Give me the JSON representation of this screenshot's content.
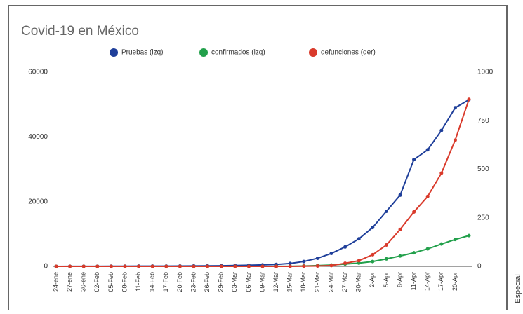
{
  "chart_data": {
    "type": "line",
    "title": "Covid-19 en México",
    "source": "Especial",
    "categories": [
      "24-ene",
      "27-ene",
      "30-ene",
      "02-Feb",
      "05-Feb",
      "08-Feb",
      "11-Feb",
      "14-Feb",
      "17-Feb",
      "20-Feb",
      "23-Feb",
      "26-Feb",
      "29-Feb",
      "03-Mar",
      "06-Mar",
      "09-Mar",
      "12-Mar",
      "15-Mar",
      "18-Mar",
      "21-Mar",
      "24-Mar",
      "27-Mar",
      "30-Mar",
      "2-Apr",
      "5-Apr",
      "8-Apr",
      "11-Apr",
      "14-Apr",
      "17-Apr",
      "20-Apr",
      null
    ],
    "series": [
      {
        "name": "Pruebas (izq)",
        "color": "#1f3f9a",
        "values": [
          10,
          20,
          30,
          40,
          50,
          60,
          70,
          80,
          90,
          110,
          130,
          160,
          200,
          270,
          350,
          450,
          600,
          900,
          1500,
          2500,
          4000,
          6000,
          8500,
          12000,
          17000,
          22000,
          33000,
          36000,
          42000,
          49000,
          51500
        ]
      },
      {
        "name": "confirmados (izq)",
        "color": "#22a04b",
        "values": [
          0,
          0,
          0,
          0,
          0,
          0,
          0,
          0,
          0,
          0,
          0,
          0,
          1,
          5,
          7,
          7,
          15,
          40,
          120,
          250,
          400,
          700,
          1000,
          1500,
          2300,
          3200,
          4200,
          5400,
          6900,
          8300,
          9500
        ]
      },
      {
        "name": "defunciones (der)",
        "color": "#d93a2b",
        "axis": "y2",
        "values": [
          0,
          0,
          0,
          0,
          0,
          0,
          0,
          0,
          0,
          0,
          0,
          0,
          0,
          0,
          0,
          0,
          0,
          0,
          1,
          2,
          4,
          16,
          29,
          60,
          110,
          190,
          280,
          360,
          480,
          650,
          860
        ]
      }
    ],
    "ylim": [
      0,
      60000
    ],
    "yticks": [
      0,
      20000,
      40000,
      60000
    ],
    "y2lim": [
      0,
      1000
    ],
    "y2ticks": [
      0,
      250,
      500,
      750,
      1000
    ]
  }
}
